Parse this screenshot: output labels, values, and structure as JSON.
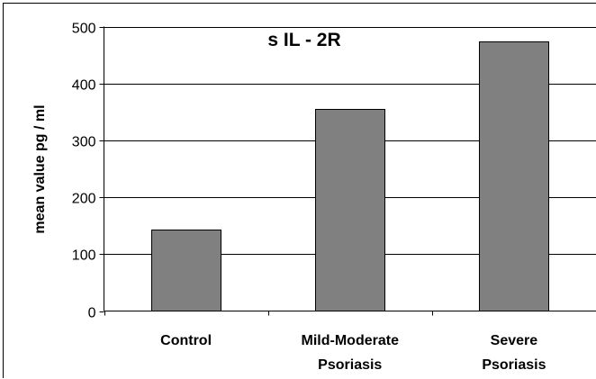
{
  "chart_data": {
    "type": "bar",
    "title": "s IL - 2R",
    "xlabel": "",
    "ylabel": "mean value pg / ml",
    "categories": [
      [
        "Control"
      ],
      [
        "Mild-Moderate",
        "Psoriasis"
      ],
      [
        "Severe",
        "Psoriasis"
      ]
    ],
    "values": [
      143,
      356,
      474
    ],
    "ylim": [
      0,
      500
    ],
    "yticks": [
      "0",
      "100",
      "200",
      "300",
      "400",
      "500"
    ],
    "grid": "horizontal major gridlines",
    "legend": "none",
    "colors": {
      "bar": "#808080",
      "bar_border": "#000000",
      "background": "#ffffff"
    }
  }
}
